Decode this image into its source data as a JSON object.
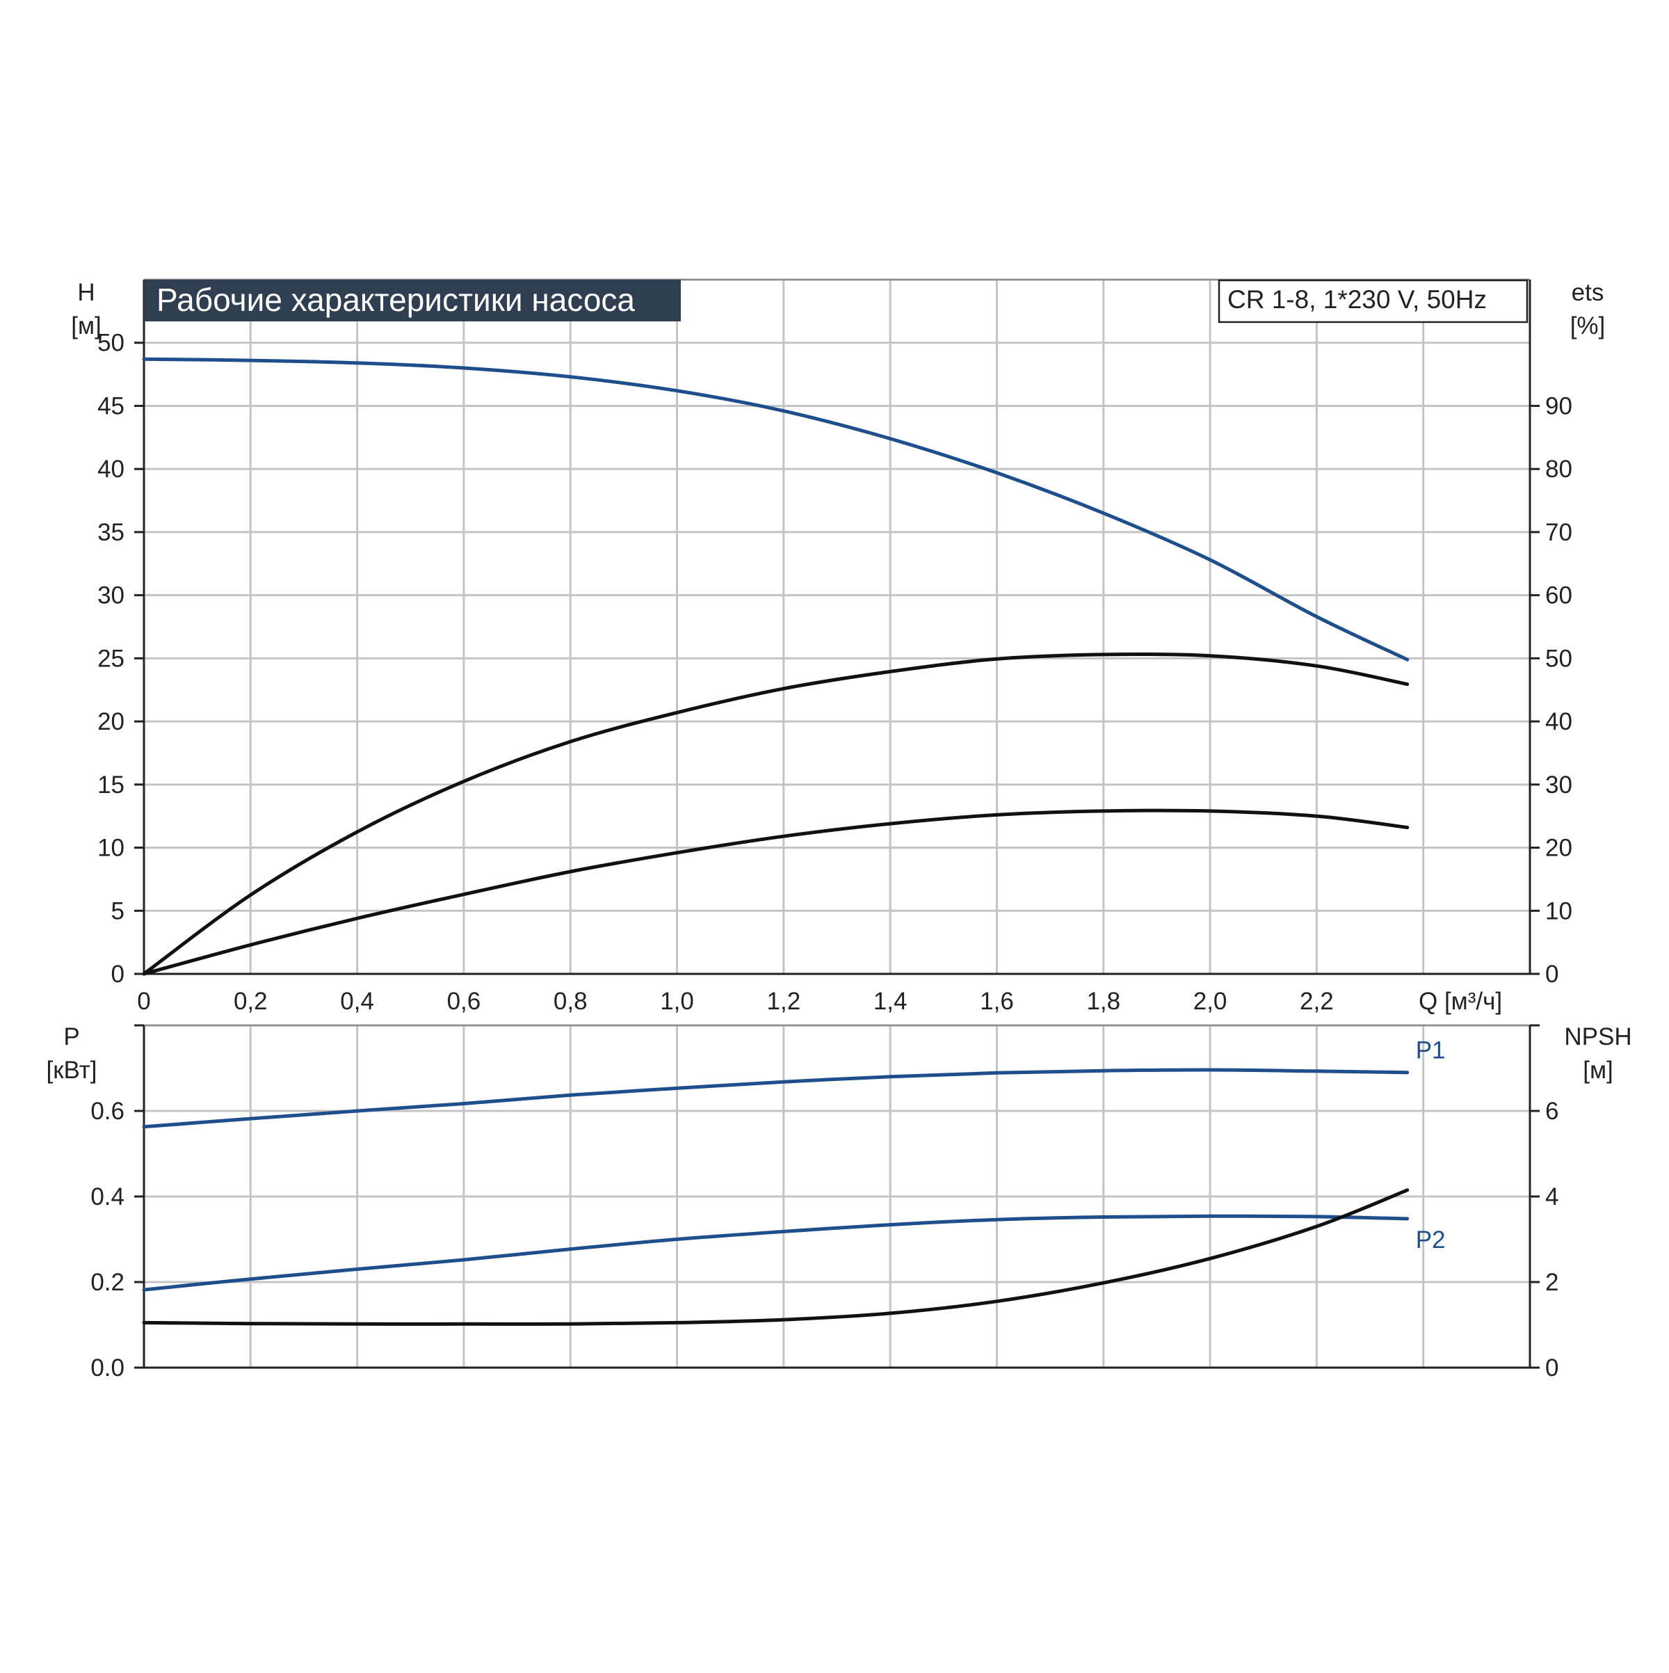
{
  "title": "Рабочие характеристики насоса",
  "model_label": "CR 1-8, 1*230 V, 50Hz",
  "colors": {
    "blue": "#1f4e8c",
    "black": "#111111",
    "title_bg": "#2f3e51"
  },
  "chart_data": [
    {
      "type": "line",
      "panel": "upper",
      "xlabel": "Q [м³/ч]",
      "x_ticks": [
        "0",
        "0,2",
        "0,4",
        "0,6",
        "0,8",
        "1,0",
        "1,2",
        "1,4",
        "1,6",
        "1,8",
        "2,0",
        "2,2"
      ],
      "xlim": [
        0,
        2.6
      ],
      "ylabel_left": {
        "name": "H",
        "unit": "[м]"
      },
      "ylim_left": [
        0,
        55
      ],
      "y_ticks_left": [
        "0",
        "5",
        "10",
        "15",
        "20",
        "25",
        "30",
        "35",
        "40",
        "45",
        "50"
      ],
      "ylabel_right": {
        "name": "ets",
        "unit": "[%]"
      },
      "ylim_right": [
        0,
        110
      ],
      "y_ticks_right": [
        "0",
        "10",
        "20",
        "30",
        "40",
        "50",
        "60",
        "70",
        "80",
        "90"
      ],
      "grid": true,
      "series": [
        {
          "axis": "left",
          "color": "blue",
          "x": [
            0,
            0.2,
            0.4,
            0.6,
            0.8,
            1.0,
            1.2,
            1.4,
            1.6,
            1.8,
            2.0,
            2.2,
            2.37
          ],
          "y": [
            48.7,
            48.6,
            48.4,
            48.0,
            47.3,
            46.2,
            44.6,
            42.4,
            39.7,
            36.5,
            32.8,
            28.3,
            24.9
          ]
        },
        {
          "axis": "right",
          "color": "black",
          "x": [
            0,
            0.2,
            0.4,
            0.6,
            0.8,
            1.0,
            1.2,
            1.4,
            1.6,
            1.8,
            2.0,
            2.2,
            2.37
          ],
          "y": [
            0,
            12.5,
            22.5,
            30.5,
            36.8,
            41.4,
            45.2,
            47.9,
            49.9,
            50.6,
            50.4,
            48.8,
            45.9
          ]
        },
        {
          "axis": "left",
          "color": "black",
          "x": [
            0,
            0.2,
            0.4,
            0.6,
            0.8,
            1.0,
            1.2,
            1.4,
            1.6,
            1.8,
            2.0,
            2.2,
            2.37
          ],
          "y": [
            0,
            2.3,
            4.4,
            6.3,
            8.1,
            9.6,
            10.9,
            11.9,
            12.6,
            12.9,
            12.9,
            12.5,
            11.6
          ]
        }
      ]
    },
    {
      "type": "line",
      "panel": "lower",
      "xlim": [
        0,
        2.6
      ],
      "ylabel_left": {
        "name": "P",
        "unit": "[кВт]"
      },
      "ylim_left": [
        0,
        0.8
      ],
      "y_ticks_left": [
        "0.0",
        "0.2",
        "0.4",
        "0.6"
      ],
      "ylabel_right": {
        "name": "NPSH",
        "unit": "[м]"
      },
      "ylim_right": [
        0,
        8
      ],
      "y_ticks_right": [
        "0",
        "2",
        "4",
        "6"
      ],
      "grid": true,
      "series": [
        {
          "name": "P1",
          "axis": "left",
          "color": "blue",
          "x": [
            0,
            0.2,
            0.4,
            0.6,
            0.8,
            1.0,
            1.2,
            1.4,
            1.6,
            1.8,
            2.0,
            2.2,
            2.37
          ],
          "y": [
            0.563,
            0.582,
            0.6,
            0.617,
            0.637,
            0.653,
            0.668,
            0.68,
            0.689,
            0.694,
            0.696,
            0.693,
            0.69
          ]
        },
        {
          "name": "P2",
          "axis": "left",
          "color": "blue",
          "x": [
            0,
            0.2,
            0.4,
            0.6,
            0.8,
            1.0,
            1.2,
            1.4,
            1.6,
            1.8,
            2.0,
            2.2,
            2.37
          ],
          "y": [
            0.182,
            0.207,
            0.23,
            0.252,
            0.277,
            0.3,
            0.318,
            0.334,
            0.346,
            0.352,
            0.354,
            0.353,
            0.348
          ]
        },
        {
          "axis": "right",
          "color": "black",
          "x": [
            0,
            0.2,
            0.4,
            0.6,
            0.8,
            1.0,
            1.2,
            1.4,
            1.6,
            1.8,
            2.0,
            2.2,
            2.37
          ],
          "y": [
            1.05,
            1.03,
            1.02,
            1.02,
            1.02,
            1.05,
            1.12,
            1.27,
            1.55,
            1.98,
            2.55,
            3.3,
            4.15
          ]
        }
      ]
    }
  ]
}
